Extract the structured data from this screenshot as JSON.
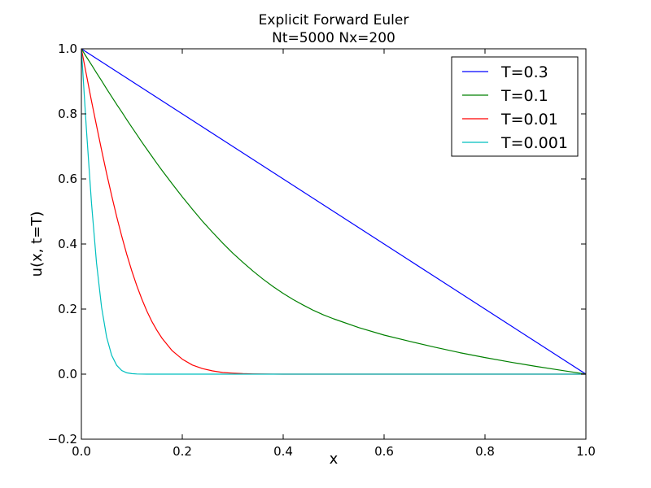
{
  "chart_data": {
    "type": "line",
    "title": "Explicit Forward Euler",
    "subtitle": "Nt=5000 Nx=200",
    "xlabel": "x",
    "ylabel": "u(x, t=T)",
    "xlim": [
      0.0,
      1.0
    ],
    "ylim": [
      -0.2,
      1.0
    ],
    "x_ticks": [
      0.0,
      0.2,
      0.4,
      0.6,
      0.8,
      1.0
    ],
    "x_tick_labels": [
      "0.0",
      "0.2",
      "0.4",
      "0.6",
      "0.8",
      "1.0"
    ],
    "y_ticks": [
      -0.2,
      0.0,
      0.2,
      0.4,
      0.6,
      0.8,
      1.0
    ],
    "y_tick_labels": [
      "−0.2",
      "0.0",
      "0.2",
      "0.4",
      "0.6",
      "0.8",
      "1.0"
    ],
    "grid": false,
    "legend_position": "top-right",
    "x": [
      0.0,
      0.01,
      0.02,
      0.03,
      0.04,
      0.05,
      0.06,
      0.07,
      0.08,
      0.09,
      0.1,
      0.11,
      0.12,
      0.13,
      0.14,
      0.15,
      0.16,
      0.18,
      0.2,
      0.22,
      0.24,
      0.26,
      0.28,
      0.3,
      0.32,
      0.34,
      0.36,
      0.38,
      0.4,
      0.42,
      0.44,
      0.46,
      0.48,
      0.5,
      0.55,
      0.6,
      0.65,
      0.7,
      0.75,
      0.8,
      0.85,
      0.9,
      0.95,
      1.0
    ],
    "series": [
      {
        "name": "T=0.3",
        "color": "#0000ff",
        "values": [
          1.0,
          0.99,
          0.98,
          0.97,
          0.96,
          0.95,
          0.94,
          0.93,
          0.92,
          0.91,
          0.9,
          0.89,
          0.88,
          0.87,
          0.86,
          0.85,
          0.84,
          0.82,
          0.8,
          0.78,
          0.76,
          0.74,
          0.72,
          0.7,
          0.68,
          0.66,
          0.64,
          0.62,
          0.6,
          0.58,
          0.56,
          0.54,
          0.52,
          0.5,
          0.45,
          0.4,
          0.35,
          0.3,
          0.25,
          0.2,
          0.15,
          0.1,
          0.05,
          0.0
        ]
      },
      {
        "name": "T=0.1",
        "color": "#008000",
        "values": [
          1.0,
          0.975,
          0.951,
          0.926,
          0.902,
          0.877,
          0.853,
          0.829,
          0.806,
          0.782,
          0.759,
          0.736,
          0.713,
          0.691,
          0.669,
          0.647,
          0.626,
          0.585,
          0.545,
          0.507,
          0.47,
          0.436,
          0.403,
          0.372,
          0.344,
          0.317,
          0.292,
          0.269,
          0.248,
          0.229,
          0.212,
          0.196,
          0.182,
          0.17,
          0.143,
          0.12,
          0.101,
          0.083,
          0.066,
          0.051,
          0.037,
          0.024,
          0.012,
          0.0
        ]
      },
      {
        "name": "T=0.01",
        "color": "#ff0000",
        "values": [
          1.0,
          0.92,
          0.84,
          0.764,
          0.689,
          0.617,
          0.549,
          0.484,
          0.424,
          0.368,
          0.317,
          0.271,
          0.23,
          0.193,
          0.161,
          0.134,
          0.11,
          0.072,
          0.046,
          0.028,
          0.017,
          0.01,
          0.005,
          0.003,
          0.0015,
          0.0007,
          0.0003,
          0.0001,
          0.0,
          0.0,
          0.0,
          0.0,
          0.0,
          0.0,
          0.0,
          0.0,
          0.0,
          0.0,
          0.0,
          0.0,
          0.0,
          0.0,
          0.0,
          0.0
        ]
      },
      {
        "name": "T=0.001",
        "color": "#00bfbf",
        "values": [
          1.0,
          0.752,
          0.527,
          0.342,
          0.206,
          0.114,
          0.058,
          0.027,
          0.011,
          0.004,
          0.0016,
          0.0005,
          0.0001,
          0.0,
          0.0,
          0.0,
          0.0,
          0.0,
          0.0,
          0.0,
          0.0,
          0.0,
          0.0,
          0.0,
          0.0,
          0.0,
          0.0,
          0.0,
          0.0,
          0.0,
          0.0,
          0.0,
          0.0,
          0.0,
          0.0,
          0.0,
          0.0,
          0.0,
          0.0,
          0.0,
          0.0,
          0.0,
          0.0,
          0.0
        ]
      }
    ]
  }
}
